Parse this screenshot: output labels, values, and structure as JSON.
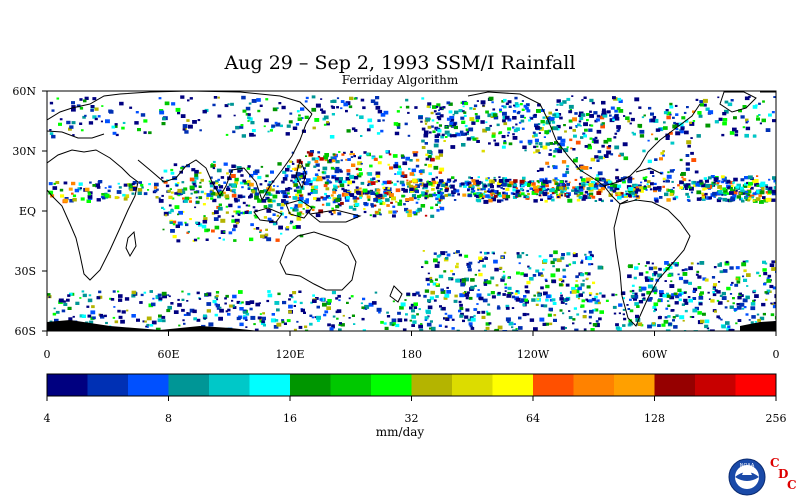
{
  "header": {
    "title": "Aug 29 – Sep 2, 1993 SSM/I Rainfall",
    "subtitle": "Ferriday Algorithm"
  },
  "map": {
    "lat_labels": [
      "60N",
      "30N",
      "EQ",
      "30S",
      "60S"
    ],
    "lon_labels": [
      "0",
      "60E",
      "120E",
      "180",
      "120W",
      "60W",
      "0"
    ],
    "lat_range": [
      -60,
      60
    ],
    "lon_range": [
      0,
      360
    ],
    "land_color": "#000000",
    "ocean_color": "#ffffff"
  },
  "colorbar": {
    "unit": "mm/day",
    "tick_labels": [
      "4",
      "8",
      "16",
      "32",
      "64",
      "128",
      "256"
    ],
    "colors": [
      "#000080",
      "#0030b4",
      "#0050ff",
      "#009696",
      "#00c8c8",
      "#00ffff",
      "#009600",
      "#00c800",
      "#00ff00",
      "#b4b400",
      "#dcdc00",
      "#ffff00",
      "#ff5000",
      "#ff8200",
      "#ffa000",
      "#960000",
      "#c80000",
      "#ff0000"
    ]
  },
  "logo": {
    "name": "NOAA",
    "letters": [
      "C",
      "D",
      "C"
    ]
  }
}
